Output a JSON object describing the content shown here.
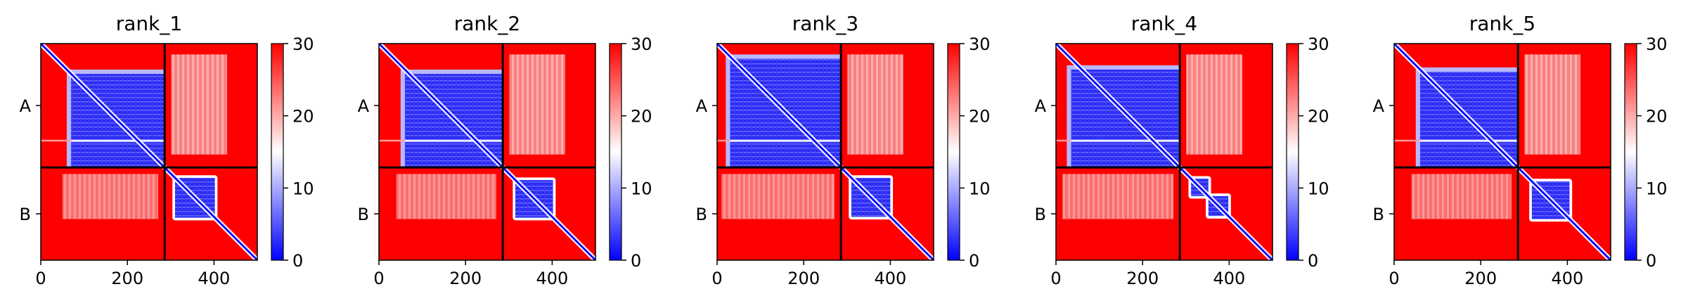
{
  "chart_data": {
    "type": "heatmap",
    "description_colormap": "bwr",
    "colorbar": {
      "min": 0,
      "max": 30,
      "ticks": [
        0,
        10,
        20,
        30
      ],
      "colors": [
        "#0000ff",
        "#ffffff",
        "#ff0000"
      ]
    },
    "xlim": [
      0,
      500
    ],
    "xticks": [
      0,
      200,
      400
    ],
    "chain_boundary": 286,
    "chain_labels": [
      "A",
      "B"
    ],
    "panels": [
      {
        "title": "rank_1",
        "a_core": [
          70,
          286
        ],
        "a_top": 70,
        "b_blocks": [
          [
            310,
            402
          ]
        ]
      },
      {
        "title": "rank_2",
        "a_core": [
          60,
          286
        ],
        "a_top": 70,
        "b_blocks": [
          [
            315,
            402
          ]
        ]
      },
      {
        "title": "rank_3",
        "a_core": [
          30,
          286
        ],
        "a_top": 35,
        "b_blocks": [
          [
            310,
            400
          ]
        ]
      },
      {
        "title": "rank_4",
        "a_core": [
          35,
          286
        ],
        "a_top": 60,
        "b_blocks": [
          [
            312,
            352
          ],
          [
            352,
            398
          ]
        ]
      },
      {
        "title": "rank_5",
        "a_core": [
          60,
          286
        ],
        "a_top": 65,
        "b_blocks": [
          [
            318,
            405
          ]
        ]
      }
    ]
  }
}
